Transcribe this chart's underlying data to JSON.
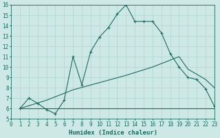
{
  "xlabel": "Humidex (Indice chaleur)",
  "xlim": [
    0,
    23
  ],
  "ylim": [
    5,
    16
  ],
  "xticks": [
    0,
    1,
    2,
    3,
    4,
    5,
    6,
    7,
    8,
    9,
    10,
    11,
    12,
    13,
    14,
    15,
    16,
    17,
    18,
    19,
    20,
    21,
    22,
    23
  ],
  "yticks": [
    5,
    6,
    7,
    8,
    9,
    10,
    11,
    12,
    13,
    14,
    15,
    16
  ],
  "bg_color": "#cde8e5",
  "grid_color": "#b0d4d0",
  "line_color": "#1a6b5e",
  "line1": {
    "x": [
      1,
      2,
      3,
      4,
      5,
      6,
      7,
      8,
      9,
      10,
      11,
      12,
      13,
      14,
      15,
      16,
      17,
      18,
      19,
      20,
      21,
      22,
      23
    ],
    "y": [
      6.0,
      7.0,
      6.5,
      5.9,
      5.5,
      6.8,
      11.0,
      8.3,
      11.5,
      12.9,
      13.8,
      15.1,
      16.0,
      14.4,
      14.4,
      14.4,
      13.3,
      11.3,
      10.0,
      9.0,
      8.8,
      7.9,
      6.2
    ]
  },
  "line2": {
    "x": [
      1,
      23
    ],
    "y": [
      6.0,
      6.0
    ]
  },
  "line3": {
    "x": [
      1,
      4,
      7,
      10,
      13,
      16,
      19,
      20,
      21,
      22,
      23
    ],
    "y": [
      6.0,
      6.8,
      7.8,
      8.5,
      9.2,
      10.0,
      11.0,
      9.8,
      9.3,
      8.8,
      8.0
    ]
  }
}
